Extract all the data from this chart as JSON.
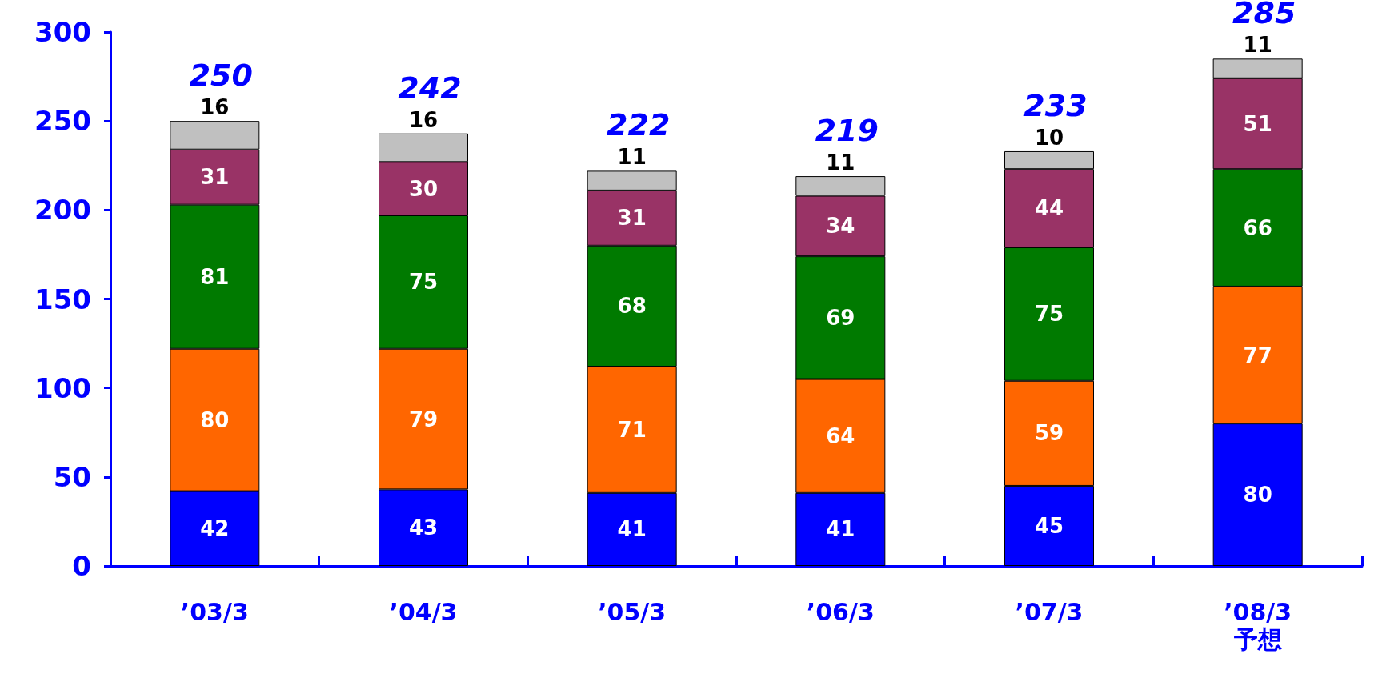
{
  "chart_data": {
    "type": "bar",
    "stacked": true,
    "data_labels": true,
    "grid": false,
    "categories": [
      "’03/3",
      "’04/3",
      "’05/3",
      "’06/3",
      "’07/3",
      "’08/3\n予想"
    ],
    "ylim": [
      0,
      300
    ],
    "yticks": [
      0,
      50,
      100,
      150,
      200,
      250,
      300
    ],
    "series": [
      {
        "color": "#0000ff",
        "values": [
          42,
          43,
          41,
          41,
          45,
          80
        ]
      },
      {
        "color": "#ff6600",
        "values": [
          80,
          79,
          71,
          64,
          59,
          77
        ]
      },
      {
        "color": "#007a00",
        "values": [
          81,
          75,
          68,
          69,
          75,
          66
        ]
      },
      {
        "color": "#993366",
        "values": [
          31,
          30,
          31,
          34,
          44,
          51
        ]
      },
      {
        "color": "#c0c0c0",
        "values": [
          16,
          16,
          11,
          11,
          10,
          11
        ]
      }
    ],
    "totals": [
      "250",
      "242",
      "222",
      "219",
      "233",
      "285"
    ]
  }
}
